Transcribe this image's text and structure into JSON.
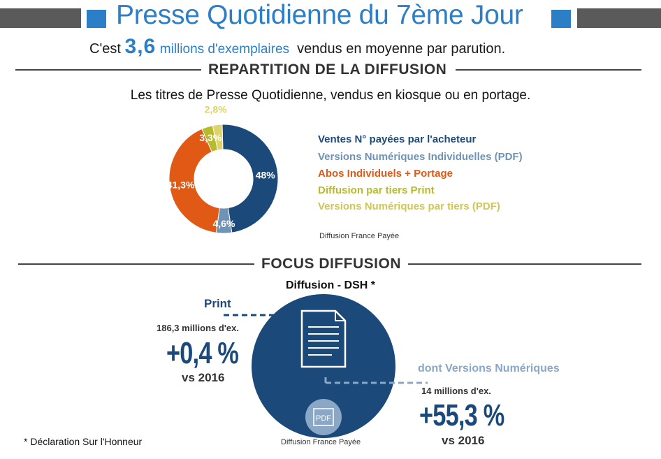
{
  "header": {
    "title": "Presse Quotidienne du 7ème Jour",
    "subtitle_prefix": "C'est",
    "subtitle_value": "3,6",
    "subtitle_unit": "millions d'exemplaires",
    "subtitle_suffix": "vendus en moyenne par parution.",
    "accent": "#2c7fc6"
  },
  "section1": {
    "title": "REPARTITION DE LA DIFFUSION",
    "lead": "Les titres de Presse Quotidienne, vendus en kiosque ou en portage.",
    "source": "Diffusion France Payée"
  },
  "chart_data": [
    {
      "type": "pie",
      "title": "REPARTITION DE LA DIFFUSION",
      "series": [
        {
          "name": "Ventes N° payées par l'acheteur",
          "value": 48,
          "label": "48%",
          "color": "#1b4a7a"
        },
        {
          "name": "Versions Numériques Individuelles (PDF)",
          "value": 4.6,
          "label": "4,6%",
          "color": "#6f93b6"
        },
        {
          "name": "Abos Individuels + Portage",
          "value": 41.3,
          "label": "41,3%",
          "color": "#e05a16"
        },
        {
          "name": "Diffusion par tiers Print",
          "value": 3.3,
          "label": "3,3%",
          "color": "#b7ba2a"
        },
        {
          "name": "Versions Numériques par tiers (PDF)",
          "value": 2.8,
          "label": "2,8%",
          "color": "#dcd36a"
        }
      ]
    },
    {
      "type": "table",
      "title": "Diffusion - DSH *",
      "rows": [
        {
          "name": "Print",
          "count": "186,3 millions d'ex.",
          "change": "+0,4 %",
          "compare": "vs 2016"
        },
        {
          "name": "dont Versions Numériques",
          "count": "14 millions d'ex.",
          "change": "+55,3 %",
          "compare": "vs 2016"
        }
      ]
    }
  ],
  "section2": {
    "title": "FOCUS DIFFUSION",
    "source": "Diffusion France Payée",
    "pdf_icon_label": "PDF"
  },
  "footnote": "* Déclaration Sur l'Honneur"
}
